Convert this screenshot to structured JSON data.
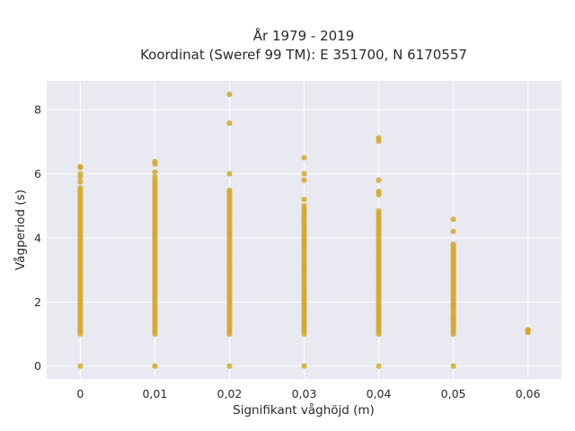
{
  "chart_data": {
    "type": "scatter",
    "title": "År 1979 - 2019",
    "subtitle": "Koordinat (Sweref 99 TM): E 351700, N 6170557",
    "xlabel": "Signifikant våghöjd (m)",
    "ylabel": "Vågperiod (s)",
    "xlim": [
      -0.0045,
      0.0645
    ],
    "ylim": [
      -0.4,
      8.9
    ],
    "x_ticks": [
      0,
      0.01,
      0.02,
      0.03,
      0.04,
      0.05,
      0.06
    ],
    "x_tick_labels": [
      "0",
      "0,01",
      "0,02",
      "0,03",
      "0,04",
      "0,05",
      "0,06"
    ],
    "y_ticks": [
      0,
      2,
      4,
      6,
      8
    ],
    "y_tick_labels": [
      "0",
      "2",
      "4",
      "6",
      "8"
    ],
    "grid": true,
    "legend": "none",
    "colors": {
      "marker": "#d4a82c",
      "plot_background": "#e9e9f1",
      "grid": "#ffffff"
    },
    "series": [
      {
        "columns": [
          {
            "x": 0,
            "band": [
              1.0,
              5.6
            ],
            "points": [
              0,
              5.75,
              5.9,
              6.0,
              6.2,
              6.22
            ]
          },
          {
            "x": 0.01,
            "band": [
              1.0,
              5.8
            ],
            "points": [
              0,
              5.9,
              6.05,
              6.3,
              6.38
            ]
          },
          {
            "x": 0.02,
            "band": [
              1.0,
              5.5
            ],
            "points": [
              0,
              6.0,
              7.58,
              8.48
            ]
          },
          {
            "x": 0.03,
            "band": [
              1.0,
              5.0
            ],
            "points": [
              0,
              5.2,
              5.8,
              6.0,
              6.5
            ]
          },
          {
            "x": 0.04,
            "band": [
              1.0,
              4.9
            ],
            "points": [
              0,
              5.35,
              5.45,
              5.8,
              7.02,
              7.12
            ]
          },
          {
            "x": 0.05,
            "band": [
              1.0,
              3.82
            ],
            "points": [
              0,
              1.45,
              1.9,
              4.2,
              4.58
            ]
          },
          {
            "x": 0.06,
            "band": [
              1.05,
              1.15
            ],
            "points": [
              1.08,
              1.12
            ]
          }
        ]
      }
    ]
  }
}
